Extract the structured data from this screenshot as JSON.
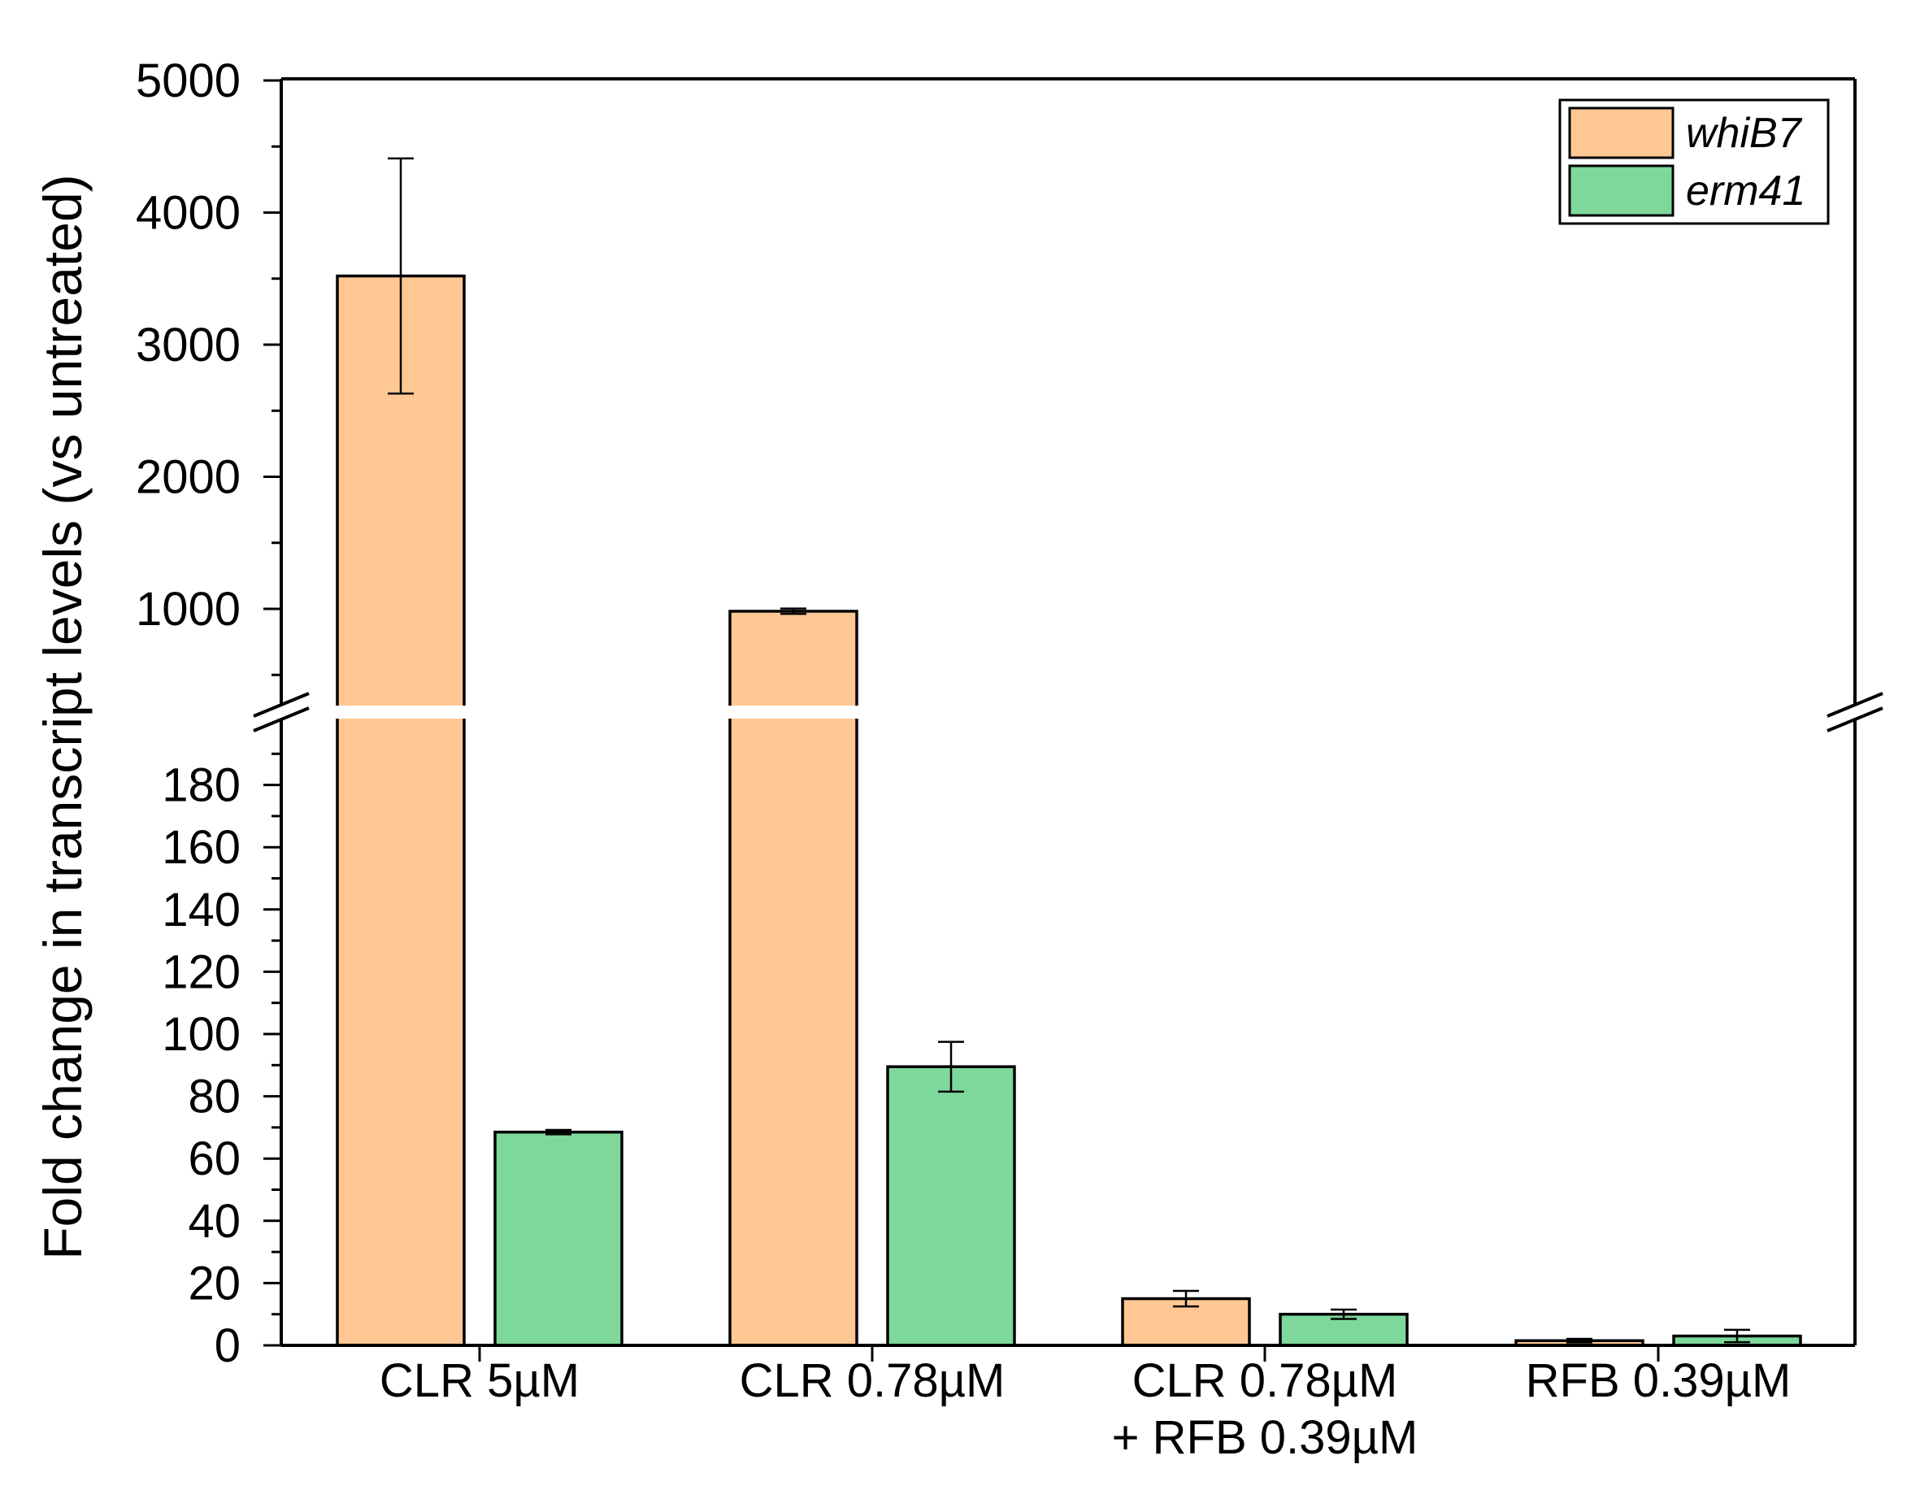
{
  "chart_data": {
    "type": "bar",
    "ylabel": "Fold change in transcript levels (vs untreated)",
    "categories": [
      [
        "CLR 5µM"
      ],
      [
        "CLR 0.78µM"
      ],
      [
        "CLR 0.78µM",
        "+ RFB 0.39µM"
      ],
      [
        "RFB 0.39µM"
      ]
    ],
    "series": [
      {
        "name": "whiB7",
        "color": "#FEC794",
        "values": [
          3520,
          982,
          15,
          1.5
        ],
        "errors": [
          890,
          20,
          2.5,
          0.6
        ]
      },
      {
        "name": "erm41",
        "color": "#7FD89B",
        "values": [
          68.5,
          89.5,
          10,
          3
        ],
        "errors": [
          0.7,
          8,
          1.5,
          2
        ]
      }
    ],
    "axis_break": {
      "lower_range": [
        0,
        195
      ],
      "upper_range": [
        600,
        5000
      ]
    },
    "yticks_lower": [
      "0",
      "20",
      "40",
      "60",
      "80",
      "100",
      "120",
      "140",
      "160",
      "180"
    ],
    "yticks_upper": [
      "1000",
      "2000",
      "3000",
      "4000",
      "5000"
    ],
    "legend_position": "top-right",
    "grid": false
  }
}
